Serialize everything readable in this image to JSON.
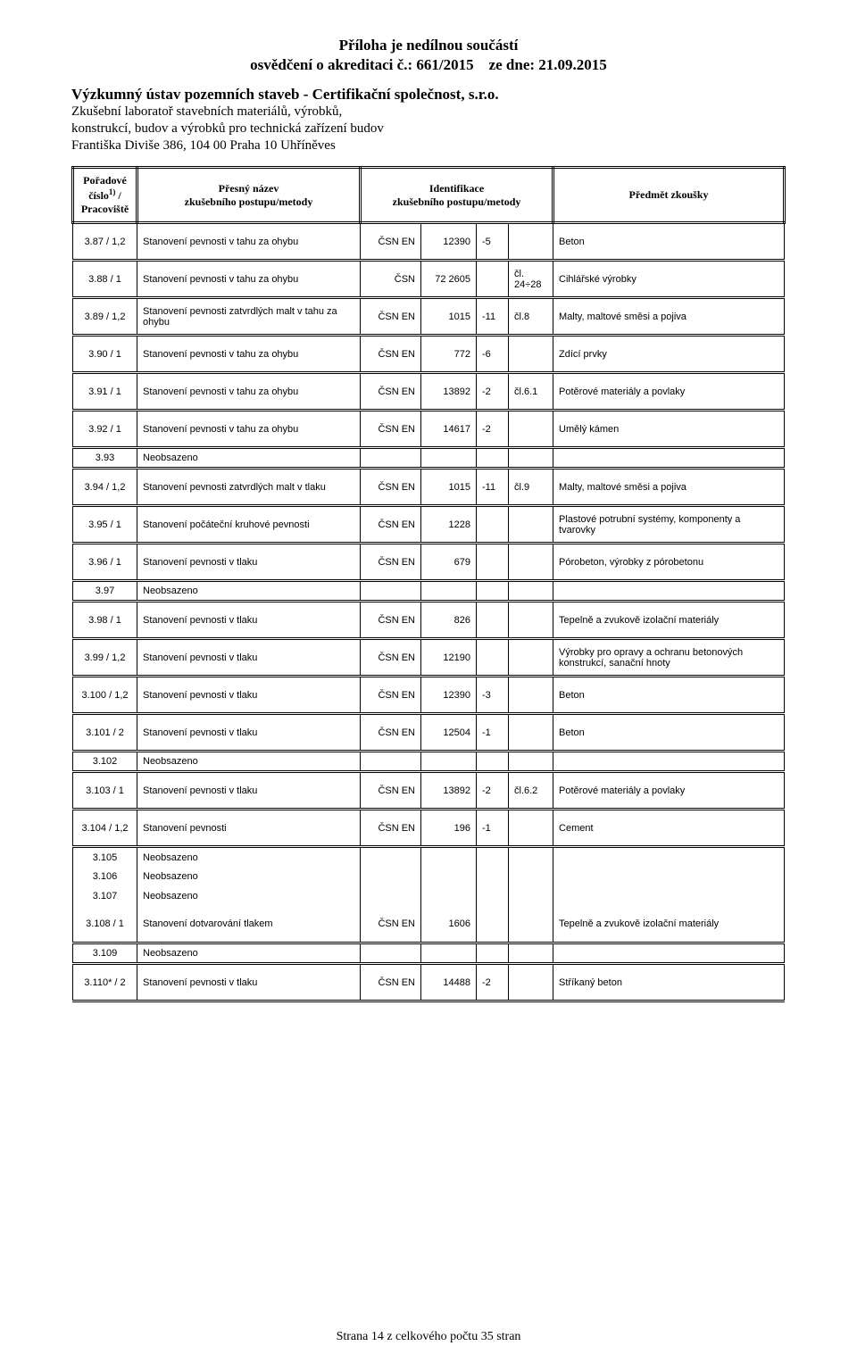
{
  "header": {
    "line1": "Příloha je nedílnou součástí",
    "line2_a": "osvědčení o akreditaci č.: 661/2015",
    "line2_b": "ze dne: 21.09.2015",
    "org": "Výzkumný ústav pozemních staveb - Certifikační společnost, s.r.o.",
    "sub1": "Zkušební laboratoř stavebních materiálů, výrobků,",
    "sub2": "konstrukcí, budov a výrobků pro technická zařízení budov",
    "sub3": "Františka Diviše 386, 104 00 Praha 10 Uhříněves"
  },
  "columns": {
    "c1a": "Pořadové",
    "c1b": "číslo",
    "c1c": " /",
    "c1d": "Pracoviště",
    "c1_sup": "1)",
    "c2a": "Přesný název",
    "c2b": "zkušebního postupu/metody",
    "c3a": "Identifikace",
    "c3b": "zkušebního postupu/metody",
    "c4": "Předmět zkoušky"
  },
  "neobs": "Neobsazeno",
  "rows": [
    {
      "num": "3.87 / 1,2",
      "name": "Stanovení pevnosti v tahu za ohybu",
      "a": "ČSN EN",
      "b": "12390",
      "c": "-5",
      "d": "",
      "subj": "Beton",
      "sep": true
    },
    {
      "num": "3.88 / 1",
      "name": "Stanovení pevnosti v tahu za ohybu",
      "a": "ČSN",
      "b": "72 2605",
      "c": "",
      "d": "čl. 24÷28",
      "subj": "Cihlářské výrobky",
      "sep": true
    },
    {
      "num": "3.89 / 1,2",
      "name": "Stanovení pevnosti zatvrdlých malt v tahu za ohybu",
      "a": "ČSN EN",
      "b": "1015",
      "c": "-11",
      "d": "čl.8",
      "subj": "Malty, maltové směsi a pojiva",
      "sep": true
    },
    {
      "num": "3.90 / 1",
      "name": "Stanovení pevnosti v tahu za ohybu",
      "a": "ČSN EN",
      "b": "772",
      "c": "-6",
      "d": "",
      "subj": "Zdící prvky",
      "sep": true
    },
    {
      "num": "3.91 / 1",
      "name": "Stanovení pevnosti v tahu za ohybu",
      "a": "ČSN EN",
      "b": "13892",
      "c": "-2",
      "d": "čl.6.1",
      "subj": "Potěrové materiály a povlaky",
      "sep": true
    },
    {
      "num": "3.92 / 1",
      "name": "Stanovení pevnosti v tahu za ohybu",
      "a": "ČSN EN",
      "b": "14617",
      "c": "-2",
      "d": "",
      "subj": "Umělý kámen",
      "sep": true
    },
    {
      "num": "3.93",
      "name": "Neobsazeno",
      "a": "",
      "b": "",
      "c": "",
      "d": "",
      "subj": "",
      "sep": true
    },
    {
      "num": "3.94 / 1,2",
      "name": "Stanovení pevnosti zatvrdlých malt v tlaku",
      "a": "ČSN EN",
      "b": "1015",
      "c": "-11",
      "d": "čl.9",
      "subj": "Malty, maltové směsi a pojiva",
      "sep": true
    },
    {
      "num": "3.95 / 1",
      "name": "Stanovení počáteční kruhové pevnosti",
      "a": "ČSN EN",
      "b": "1228",
      "c": "",
      "d": "",
      "subj": "Plastové potrubní systémy, komponenty a tvarovky",
      "sep": true
    },
    {
      "num": "3.96 / 1",
      "name": "Stanovení pevnosti v tlaku",
      "a": "ČSN EN",
      "b": "679",
      "c": "",
      "d": "",
      "subj": "Pórobeton, výrobky z pórobetonu",
      "sep": true
    },
    {
      "num": "3.97",
      "name": "Neobsazeno",
      "a": "",
      "b": "",
      "c": "",
      "d": "",
      "subj": "",
      "sep": true
    },
    {
      "num": "3.98 / 1",
      "name": "Stanovení pevnosti v tlaku",
      "a": "ČSN EN",
      "b": "826",
      "c": "",
      "d": "",
      "subj": "Tepelně a zvukově izolační materiály",
      "sep": true
    },
    {
      "num": "3.99 / 1,2",
      "name": "Stanovení pevnosti v tlaku",
      "a": "ČSN EN",
      "b": "12190",
      "c": "",
      "d": "",
      "subj": "Výrobky pro opravy a ochranu betonových konstrukcí, sanační hnoty",
      "sep": true
    },
    {
      "num": "3.100 / 1,2",
      "name": "Stanovení pevnosti v tlaku",
      "a": "ČSN EN",
      "b": "12390",
      "c": "-3",
      "d": "",
      "subj": "Beton",
      "sep": true
    },
    {
      "num": "3.101 / 2",
      "name": "Stanovení pevnosti v tlaku",
      "a": "ČSN EN",
      "b": "12504",
      "c": "-1",
      "d": "",
      "subj": "Beton",
      "sep": true
    },
    {
      "num": "3.102",
      "name": "Neobsazeno",
      "a": "",
      "b": "",
      "c": "",
      "d": "",
      "subj": "",
      "sep": true
    },
    {
      "num": "3.103 / 1",
      "name": "Stanovení pevnosti v tlaku",
      "a": "ČSN EN",
      "b": "13892",
      "c": "-2",
      "d": "čl.6.2",
      "subj": "Potěrové materiály a povlaky",
      "sep": true
    },
    {
      "num": "3.104 / 1,2",
      "name": "Stanovení pevnosti",
      "a": "ČSN EN",
      "b": "196",
      "c": "-1",
      "d": "",
      "subj": "Cement",
      "sep": true
    },
    {
      "num": "3.105",
      "name": "Neobsazeno",
      "a": "",
      "b": "",
      "c": "",
      "d": "",
      "subj": "",
      "sep": true
    },
    {
      "num": "3.106",
      "name": "Neobsazeno",
      "a": "",
      "b": "",
      "c": "",
      "d": "",
      "subj": "",
      "sep": false
    },
    {
      "num": "3.107",
      "name": "Neobsazeno",
      "a": "",
      "b": "",
      "c": "",
      "d": "",
      "subj": "",
      "sep": false
    },
    {
      "num": "3.108 / 1",
      "name": "Stanovení dotvarování tlakem",
      "a": "ČSN EN",
      "b": "1606",
      "c": "",
      "d": "",
      "subj": "Tepelně a zvukově izolační materiály",
      "sep": false
    },
    {
      "num": "3.109",
      "name": "Neobsazeno",
      "a": "",
      "b": "",
      "c": "",
      "d": "",
      "subj": "",
      "sep": true
    },
    {
      "num": "3.110* / 2",
      "name": "Stanovení pevnosti v tlaku",
      "a": "ČSN EN",
      "b": "14488",
      "c": "-2",
      "d": "",
      "subj": "Stříkaný beton",
      "sep": true,
      "last": true
    }
  ],
  "footer": "Strana 14 z celkového počtu 35 stran"
}
